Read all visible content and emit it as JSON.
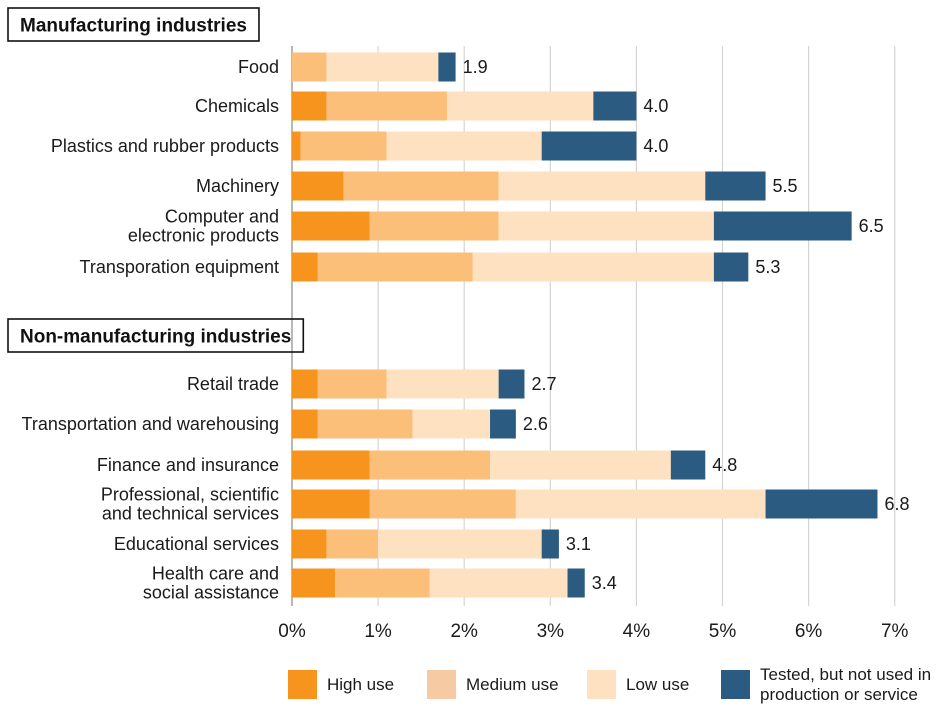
{
  "chart_data": {
    "type": "bar",
    "orientation": "horizontal",
    "stacked": true,
    "xlim": [
      0,
      7
    ],
    "xticks": [
      "0%",
      "1%",
      "2%",
      "3%",
      "4%",
      "5%",
      "6%",
      "7%"
    ],
    "grid": true,
    "legend_position": "bottom",
    "groups": [
      {
        "title": "Manufacturing industries",
        "rows": [
          {
            "label": [
              "Food"
            ],
            "values": [
              0,
              0.4,
              1.3,
              0.2
            ],
            "total": "1.9"
          },
          {
            "label": [
              "Chemicals"
            ],
            "values": [
              0.4,
              1.4,
              1.7,
              0.5
            ],
            "total": "4.0"
          },
          {
            "label": [
              "Plastics and rubber products"
            ],
            "values": [
              0.1,
              1.0,
              1.8,
              1.1
            ],
            "total": "4.0"
          },
          {
            "label": [
              "Machinery"
            ],
            "values": [
              0.6,
              1.8,
              2.4,
              0.7
            ],
            "total": "5.5"
          },
          {
            "label": [
              "Computer and",
              "electronic products"
            ],
            "values": [
              0.9,
              1.5,
              2.5,
              1.6
            ],
            "total": "6.5"
          },
          {
            "label": [
              "Transporation equipment"
            ],
            "values": [
              0.3,
              1.8,
              2.8,
              0.4
            ],
            "total": "5.3"
          }
        ]
      },
      {
        "title": "Non-manufacturing industries",
        "rows": [
          {
            "label": [
              "Retail trade"
            ],
            "values": [
              0.3,
              0.8,
              1.3,
              0.3
            ],
            "total": "2.7"
          },
          {
            "label": [
              "Transportation and warehousing"
            ],
            "values": [
              0.3,
              1.1,
              0.9,
              0.3
            ],
            "total": "2.6"
          },
          {
            "label": [
              "Finance and insurance"
            ],
            "values": [
              0.9,
              1.4,
              2.1,
              0.4
            ],
            "total": "4.8"
          },
          {
            "label": [
              "Professional, scientific",
              "and technical services"
            ],
            "values": [
              0.9,
              1.7,
              2.9,
              1.3
            ],
            "total": "6.8"
          },
          {
            "label": [
              "Educational services"
            ],
            "values": [
              0.4,
              0.6,
              1.9,
              0.2
            ],
            "total": "3.1"
          },
          {
            "label": [
              "Health care and",
              "social assistance"
            ],
            "values": [
              0.5,
              1.1,
              1.6,
              0.2
            ],
            "total": "3.4"
          }
        ]
      }
    ],
    "series": [
      {
        "name": [
          "High use"
        ],
        "color": "#F7941D"
      },
      {
        "name": [
          "Medium use"
        ],
        "color": "#FBBF7A"
      },
      {
        "name": [
          "Low use"
        ],
        "color": "#FDE1C0"
      },
      {
        "name": [
          "Tested, but not used in",
          "production or service"
        ],
        "color": "#2B5B80"
      }
    ],
    "legend_swatch_colors": [
      "#F7941D",
      "#F6CBA4",
      "#FDE1C0",
      "#2B5B80"
    ]
  }
}
